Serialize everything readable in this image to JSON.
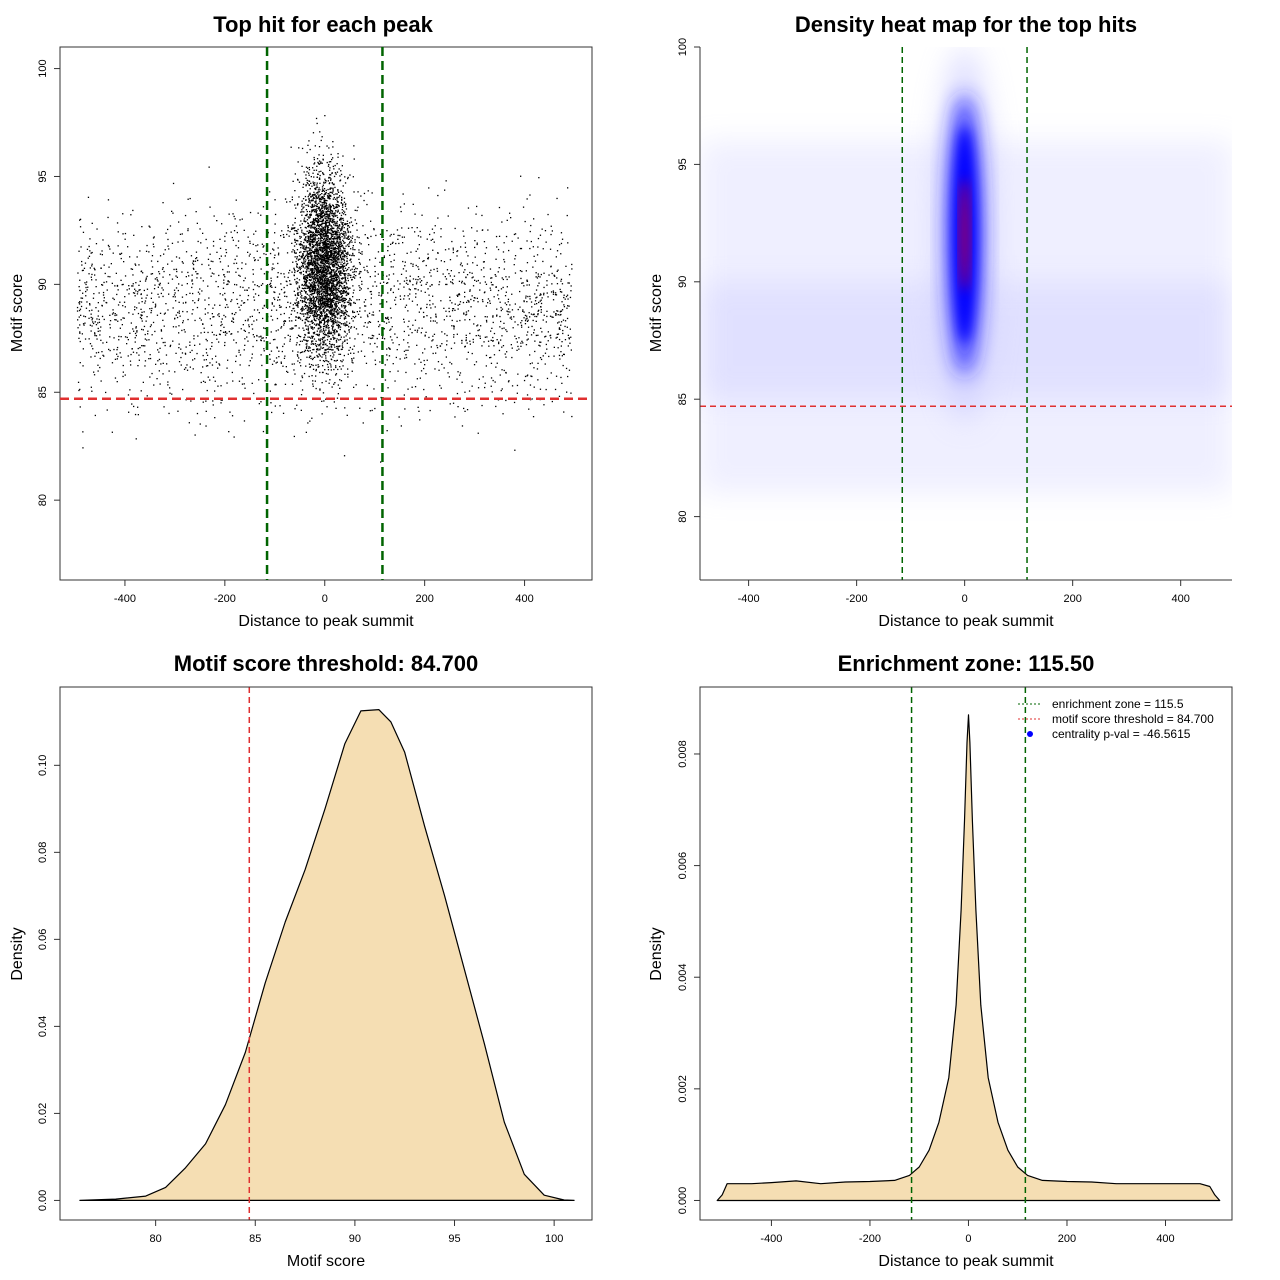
{
  "colors": {
    "points": "#000000",
    "enrichment": "#006400",
    "threshold": "#e03030",
    "density_fill": "#f5deb3",
    "heat_low": "#ffffff",
    "heat_mid": "#0000ff",
    "heat_high": "#ff0000",
    "legend_point": "#0000ff"
  },
  "chart_data": [
    {
      "type": "scatter",
      "title": "Top hit for each peak",
      "xlabel": "Distance to peak summit",
      "ylabel": "Motif score",
      "xlim": [
        -530,
        535
      ],
      "ylim": [
        76.3,
        101
      ],
      "xticks": [
        -400,
        -200,
        0,
        200,
        400
      ],
      "yticks": [
        80,
        85,
        90,
        95,
        100
      ],
      "xtick_labels": [
        "-400",
        "-200",
        "0",
        "200",
        "400"
      ],
      "ytick_labels": [
        "80",
        "85",
        "90",
        "95",
        "100"
      ],
      "x_range": [
        -495,
        495
      ],
      "y_range": [
        77,
        100
      ],
      "description_of_points": "dense concentration near 0, spread uniform across -495..495",
      "enrichment_zone": 115.5,
      "threshold": 84.7
    },
    {
      "type": "heatmap",
      "title": "Density heat map for the top hits",
      "xlabel": "Distance to peak summit",
      "ylabel": "Motif score",
      "xlim": [
        -490,
        495
      ],
      "ylim": [
        77.3,
        100
      ],
      "xticks": [
        -400,
        -200,
        0,
        200,
        400
      ],
      "yticks": [
        80,
        85,
        90,
        95,
        100
      ],
      "xtick_labels": [
        "-400",
        "-200",
        "0",
        "200",
        "400"
      ],
      "ytick_labels": [
        "80",
        "85",
        "90",
        "95",
        "100"
      ],
      "peak_center": [
        0,
        92
      ],
      "enrichment_zone": 115.5,
      "threshold": 84.7
    },
    {
      "type": "area",
      "title": "Motif score threshold: 84.700",
      "xlabel": "Motif score",
      "ylabel": "Density",
      "xlim": [
        75.2,
        101.9
      ],
      "ylim": [
        -0.0045,
        0.118
      ],
      "xticks": [
        80,
        85,
        90,
        95,
        100
      ],
      "yticks": [
        0,
        0.02,
        0.04,
        0.06,
        0.08,
        0.1
      ],
      "xtick_labels": [
        "80",
        "85",
        "90",
        "95",
        "100"
      ],
      "ytick_labels": [
        "0.00",
        "0.02",
        "0.04",
        "0.06",
        "0.08",
        "0.10"
      ],
      "x": [
        76.2,
        78,
        79.5,
        80.5,
        81.5,
        82.5,
        83.5,
        84.5,
        85.5,
        86.5,
        87.5,
        88.5,
        89.5,
        90.3,
        91.2,
        91.8,
        92.5,
        93.5,
        94.5,
        95.5,
        96.5,
        97.5,
        98.5,
        99.5,
        100.5,
        101
      ],
      "values": [
        0,
        0.0003,
        0.001,
        0.003,
        0.0075,
        0.013,
        0.022,
        0.034,
        0.05,
        0.064,
        0.076,
        0.09,
        0.105,
        0.1125,
        0.1128,
        0.11,
        0.103,
        0.086,
        0.07,
        0.053,
        0.036,
        0.018,
        0.006,
        0.0012,
        0.0001,
        0
      ],
      "threshold": 84.7
    },
    {
      "type": "area",
      "title": "Enrichment zone: 115.50",
      "xlabel": "Distance to peak summit",
      "ylabel": "Density",
      "xlim": [
        -545,
        535
      ],
      "ylim": [
        -0.00035,
        0.0092
      ],
      "xticks": [
        -400,
        -200,
        0,
        200,
        400
      ],
      "yticks": [
        0,
        0.002,
        0.004,
        0.006,
        0.008
      ],
      "xtick_labels": [
        "-400",
        "-200",
        "0",
        "200",
        "400"
      ],
      "ytick_labels": [
        "0.000",
        "0.002",
        "0.004",
        "0.006",
        "0.008"
      ],
      "x": [
        -510,
        -500,
        -490,
        -470,
        -440,
        -400,
        -350,
        -300,
        -250,
        -200,
        -150,
        -120,
        -100,
        -80,
        -60,
        -40,
        -25,
        -15,
        -8,
        -3,
        0,
        3,
        8,
        15,
        25,
        40,
        60,
        80,
        100,
        120,
        150,
        200,
        250,
        300,
        350,
        400,
        440,
        470,
        490,
        500,
        510
      ],
      "values": [
        0,
        0.0001,
        0.0003,
        0.0003,
        0.0003,
        0.00032,
        0.00035,
        0.0003,
        0.00033,
        0.00034,
        0.00036,
        0.00045,
        0.0006,
        0.0009,
        0.0014,
        0.0022,
        0.0035,
        0.0052,
        0.0068,
        0.0082,
        0.0087,
        0.0082,
        0.0068,
        0.0052,
        0.0035,
        0.0022,
        0.0014,
        0.0009,
        0.0006,
        0.00045,
        0.00036,
        0.00034,
        0.00033,
        0.0003,
        0.0003,
        0.0003,
        0.0003,
        0.0003,
        0.00025,
        0.0001,
        0
      ],
      "enrichment_zone": 115.5,
      "legend": [
        {
          "label": "enrichment zone = 115.5",
          "kind": "line"
        },
        {
          "label": "motif score threshold = 84.700",
          "kind": "line"
        },
        {
          "label": "centrality p-val = -46.5615",
          "kind": "point"
        }
      ]
    }
  ]
}
